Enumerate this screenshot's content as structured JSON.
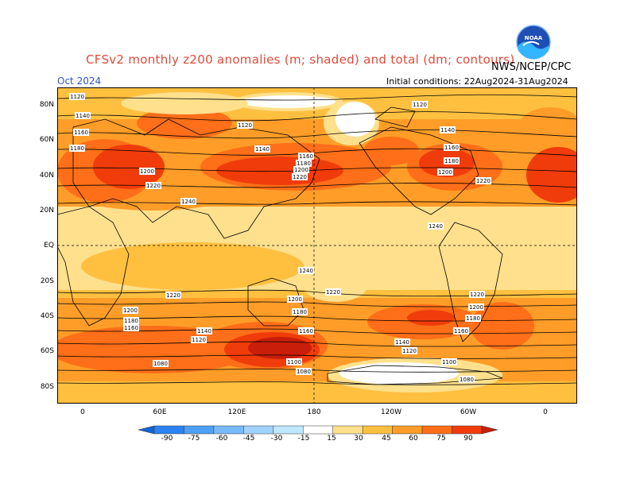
{
  "header": {
    "title": "CFSv2 monthly z200 anomalies (m; shaded) and total (dm; contours)",
    "agency": "NWS/NCEP/CPC",
    "month": "Oct 2024",
    "initial_conditions": "Initial conditions: 22Aug2024-31Aug2024"
  },
  "logo": {
    "text": "NOAA",
    "icon": "noaa-logo-icon"
  },
  "map": {
    "lat_labels": [
      "80N",
      "60N",
      "40N",
      "20N",
      "EQ",
      "20S",
      "40S",
      "60S",
      "80S"
    ],
    "lon_labels": [
      "0",
      "60E",
      "120E",
      "180",
      "120W",
      "60W",
      "0"
    ],
    "contour_labels": [
      "1120",
      "1140",
      "1160",
      "1180",
      "1200",
      "1220",
      "1240",
      "1100",
      "1080"
    ]
  },
  "colorbar": {
    "ticks": [
      "-90",
      "-75",
      "-60",
      "-45",
      "-30",
      "-15",
      "15",
      "30",
      "45",
      "60",
      "75",
      "90"
    ],
    "colors": [
      "#1464d2",
      "#2c82f0",
      "#4ea0f5",
      "#78b9fa",
      "#a0d2ff",
      "#bee8ff",
      "#ffffff",
      "#ffe08c",
      "#ffc040",
      "#ff9d28",
      "#ff6e18",
      "#f03c0a",
      "#c81e0a"
    ]
  }
}
